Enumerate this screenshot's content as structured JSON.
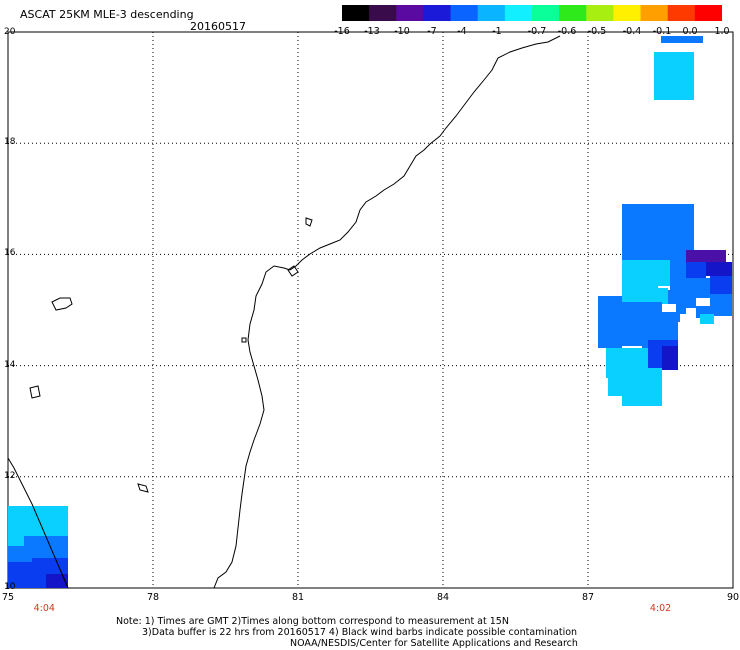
{
  "header": {
    "title": "ASCAT 25KM MLE-3 descending",
    "date": "20160517"
  },
  "colorbar": {
    "labels": [
      "-16",
      "-13",
      "-10",
      "-7",
      "-4",
      "-1",
      "-0.7",
      "-0.6",
      "-0.5",
      "-0.4",
      "-0.1",
      "0.0",
      "1.0"
    ],
    "colors": [
      "#000000",
      "#3a0b4a",
      "#5a0aa0",
      "#1a1ad8",
      "#0a64ff",
      "#0ab4ff",
      "#12f0ff",
      "#0aff9a",
      "#2eea1a",
      "#a8ee10",
      "#fff000",
      "#ffa000",
      "#ff3a00",
      "#ff0000"
    ]
  },
  "axes": {
    "x_ticks": [
      "75",
      "78",
      "81",
      "84",
      "87",
      "90"
    ],
    "y_ticks": [
      "20",
      "18",
      "16",
      "14",
      "12",
      "10"
    ],
    "x_range": [
      75,
      90
    ],
    "y_range": [
      10,
      20
    ]
  },
  "times": [
    {
      "lon": 75.75,
      "label": "4:04"
    },
    {
      "lon": 88.5,
      "label": "4:02"
    }
  ],
  "notes": {
    "line1": "Note: 1) Times are GMT 2)Times along bottom correspond to measurement at 15N",
    "line2": "3)Data buffer is 22 hrs from 20160517 4) Black wind barbs indicate possible contamination",
    "line3": "NOAA/NESDIS/Center for Satellite Applications and Research"
  },
  "data_colors": {
    "light": "#0ad0ff",
    "mid": "#0a78ff",
    "deep": "#0a3cf0",
    "navy": "#1414c8",
    "purple": "#4a10a8"
  }
}
